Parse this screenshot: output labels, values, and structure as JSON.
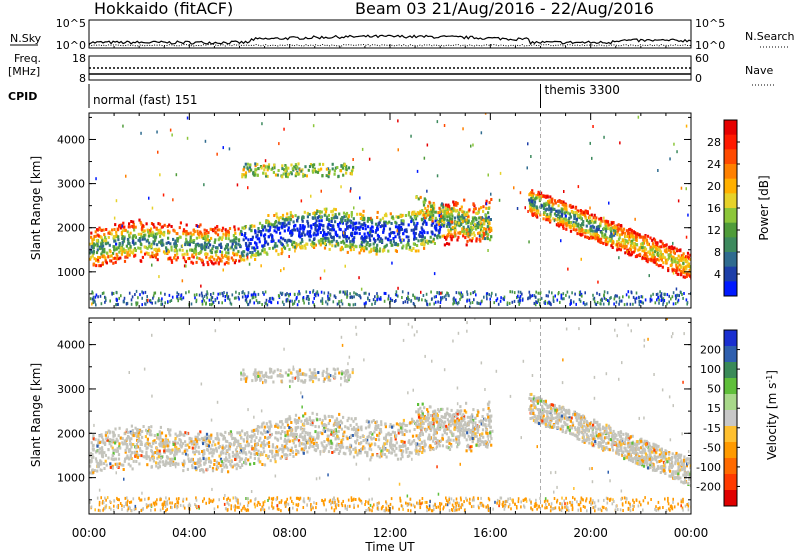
{
  "header": {
    "station": "Hokkaido (fitACF)",
    "beam_info": "Beam 03  21/Aug/2016 - 22/Aug/2016"
  },
  "top_panels": {
    "nsky_label": "N.Sky",
    "nsky_ticks": [
      "10^5",
      "10^0"
    ],
    "nsearch_label": "N.Search",
    "nsearch_ticks": [
      "10^5",
      "10^0"
    ],
    "freq_label_1": "Freq.",
    "freq_label_2": "[MHz]",
    "freq_ticks": [
      "18",
      "8"
    ],
    "nave_label": "Nave",
    "nave_ticks": [
      "60",
      "0"
    ],
    "cpid_label": "CPID",
    "cpid_modes": [
      {
        "label": "normal (fast) 151",
        "start_hour": 0
      },
      {
        "label": "themis 3300",
        "start_hour": 18
      }
    ]
  },
  "chart_data": [
    {
      "type": "heatmap",
      "title": "",
      "quantity": "Power",
      "xlabel": "",
      "ylabel": "Slant Range [km]",
      "xlim": [
        0,
        24
      ],
      "ylim": [
        180,
        4600
      ],
      "y_ticks": [
        "1000",
        "2000",
        "3000",
        "4000"
      ],
      "colorbar_label": "Power [dB]",
      "colorbar_ticks": [
        "4",
        "8",
        "12",
        "16",
        "20",
        "24",
        "28"
      ],
      "colorbar_range": [
        0,
        32
      ],
      "colorbar_colors": [
        "#0019ff",
        "#1d3fa8",
        "#2f6b8f",
        "#3d8a5e",
        "#4f9c3a",
        "#8cc63a",
        "#e6d22a",
        "#ffb000",
        "#ff8000",
        "#ff4a00",
        "#ff1a00",
        "#e60000"
      ]
    },
    {
      "type": "heatmap",
      "title": "",
      "quantity": "Velocity",
      "xlabel": "Time UT",
      "ylabel": "Slant Range [km]",
      "xlim": [
        0,
        24
      ],
      "ylim": [
        180,
        4600
      ],
      "x_ticks": [
        "00:00",
        "04:00",
        "08:00",
        "12:00",
        "16:00",
        "20:00",
        "00:00"
      ],
      "y_ticks": [
        "1000",
        "2000",
        "3000",
        "4000"
      ],
      "colorbar_label": "Velocity [m s^-1]",
      "colorbar_ticks": [
        "200",
        "100",
        "50",
        "15",
        "-15",
        "-50",
        "-100",
        "-200"
      ],
      "colorbar_colors": [
        "#1a2fd0",
        "#2f5fae",
        "#3a8a58",
        "#5fbf3a",
        "#a8d88a",
        "#c8c8c8",
        "#ffc030",
        "#ff9a00",
        "#ff6a00",
        "#ff3a00",
        "#e00000"
      ]
    }
  ],
  "colors": {
    "gray_scatter": "#c4c4bc",
    "dashed_line": "#999999"
  }
}
